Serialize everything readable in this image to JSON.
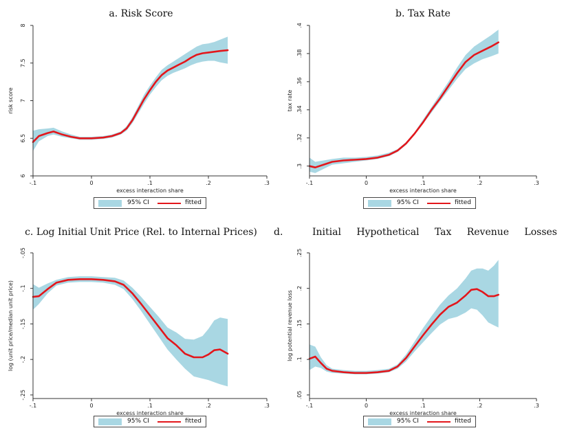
{
  "chart_data": [
    {
      "id": "a",
      "type": "line",
      "title": "a. Risk Score",
      "xlabel": "excess interaction share",
      "ylabel": "risk score",
      "xlim": [
        -0.1,
        0.3
      ],
      "ylim": [
        6,
        8
      ],
      "xticks": [
        -0.1,
        0,
        0.1,
        0.2,
        0.3
      ],
      "xtick_labels": [
        "-.1",
        "0",
        ".1",
        ".2",
        ".3"
      ],
      "yticks": [
        6,
        6.5,
        7,
        7.5,
        8
      ],
      "ytick_labels": [
        "6",
        "6.5",
        "7",
        "7.5",
        "8"
      ],
      "x": [
        -0.1,
        -0.09,
        -0.075,
        -0.065,
        -0.05,
        -0.035,
        -0.02,
        0,
        0.02,
        0.035,
        0.05,
        0.06,
        0.07,
        0.08,
        0.09,
        0.1,
        0.11,
        0.12,
        0.13,
        0.14,
        0.15,
        0.16,
        0.17,
        0.18,
        0.19,
        0.2,
        0.21,
        0.22,
        0.233
      ],
      "fitted": [
        6.45,
        6.53,
        6.57,
        6.59,
        6.55,
        6.52,
        6.5,
        6.5,
        6.51,
        6.53,
        6.57,
        6.63,
        6.74,
        6.88,
        7.02,
        7.14,
        7.25,
        7.34,
        7.4,
        7.44,
        7.48,
        7.52,
        7.57,
        7.61,
        7.63,
        7.64,
        7.65,
        7.66,
        7.67
      ],
      "ci_lower": [
        6.33,
        6.46,
        6.53,
        6.55,
        6.52,
        6.5,
        6.48,
        6.48,
        6.49,
        6.51,
        6.55,
        6.6,
        6.7,
        6.83,
        6.96,
        7.08,
        7.18,
        7.27,
        7.33,
        7.37,
        7.4,
        7.43,
        7.47,
        7.5,
        7.52,
        7.53,
        7.53,
        7.51,
        7.49
      ],
      "ci_upper": [
        6.6,
        6.62,
        6.63,
        6.64,
        6.59,
        6.55,
        6.52,
        6.52,
        6.53,
        6.55,
        6.59,
        6.66,
        6.78,
        6.93,
        7.08,
        7.2,
        7.31,
        7.41,
        7.47,
        7.52,
        7.57,
        7.62,
        7.67,
        7.72,
        7.75,
        7.76,
        7.78,
        7.81,
        7.85
      ],
      "legend": [
        "95% CI",
        "fitted"
      ]
    },
    {
      "id": "b",
      "type": "line",
      "title": "b. Tax Rate",
      "xlabel": "excess interaction share",
      "ylabel": "tax rate",
      "xlim": [
        -0.1,
        0.3
      ],
      "ylim": [
        0.293,
        0.4
      ],
      "xticks": [
        -0.1,
        0,
        0.1,
        0.2,
        0.3
      ],
      "xtick_labels": [
        "-.1",
        "0",
        ".1",
        ".2",
        ".3"
      ],
      "yticks": [
        0.3,
        0.32,
        0.34,
        0.36,
        0.38,
        0.4
      ],
      "ytick_labels": [
        ".3",
        ".32",
        ".34",
        ".36",
        ".38",
        ".4"
      ],
      "x": [
        -0.1,
        -0.09,
        -0.075,
        -0.06,
        -0.04,
        -0.02,
        0,
        0.02,
        0.04,
        0.055,
        0.07,
        0.085,
        0.1,
        0.115,
        0.13,
        0.145,
        0.16,
        0.175,
        0.19,
        0.205,
        0.22,
        0.233
      ],
      "fitted": [
        0.3,
        0.299,
        0.301,
        0.303,
        0.304,
        0.3045,
        0.305,
        0.306,
        0.308,
        0.311,
        0.316,
        0.323,
        0.331,
        0.34,
        0.348,
        0.357,
        0.366,
        0.374,
        0.379,
        0.382,
        0.385,
        0.388
      ],
      "ci_lower": [
        0.296,
        0.295,
        0.298,
        0.301,
        0.302,
        0.303,
        0.304,
        0.305,
        0.307,
        0.31,
        0.315,
        0.322,
        0.33,
        0.338,
        0.346,
        0.354,
        0.362,
        0.369,
        0.373,
        0.376,
        0.378,
        0.38
      ],
      "ci_upper": [
        0.306,
        0.303,
        0.304,
        0.305,
        0.306,
        0.306,
        0.3065,
        0.3075,
        0.3095,
        0.312,
        0.317,
        0.324,
        0.333,
        0.342,
        0.351,
        0.36,
        0.37,
        0.379,
        0.385,
        0.389,
        0.393,
        0.397
      ],
      "legend": [
        "95% CI",
        "fitted"
      ]
    },
    {
      "id": "c",
      "type": "line",
      "title": "c. Log Initial Unit Price (Rel. to Internal Prices)",
      "xlabel": "excess interaction share",
      "ylabel": "log (unit price/median unit price)",
      "xlim": [
        -0.1,
        0.3
      ],
      "ylim": [
        -0.255,
        -0.05
      ],
      "xticks": [
        -0.1,
        0,
        0.1,
        0.2,
        0.3
      ],
      "xtick_labels": [
        "-.1",
        "0",
        ".1",
        ".2",
        ".3"
      ],
      "yticks": [
        -0.25,
        -0.2,
        -0.15,
        -0.1,
        -0.05
      ],
      "ytick_labels": [
        "-.25",
        "-.2",
        "-.15",
        "-.1",
        "-.05"
      ],
      "x": [
        -0.1,
        -0.09,
        -0.075,
        -0.06,
        -0.04,
        -0.02,
        0,
        0.02,
        0.04,
        0.055,
        0.07,
        0.085,
        0.1,
        0.115,
        0.13,
        0.145,
        0.16,
        0.175,
        0.19,
        0.2,
        0.21,
        0.22,
        0.233
      ],
      "fitted": [
        -0.112,
        -0.111,
        -0.101,
        -0.092,
        -0.088,
        -0.087,
        -0.087,
        -0.088,
        -0.09,
        -0.095,
        -0.107,
        -0.122,
        -0.138,
        -0.154,
        -0.17,
        -0.18,
        -0.192,
        -0.197,
        -0.197,
        -0.193,
        -0.187,
        -0.186,
        -0.192
      ],
      "ci_lower": [
        -0.13,
        -0.122,
        -0.107,
        -0.096,
        -0.092,
        -0.091,
        -0.091,
        -0.092,
        -0.095,
        -0.101,
        -0.115,
        -0.132,
        -0.15,
        -0.168,
        -0.186,
        -0.2,
        -0.213,
        -0.224,
        -0.227,
        -0.229,
        -0.232,
        -0.235,
        -0.238
      ],
      "ci_upper": [
        -0.094,
        -0.099,
        -0.093,
        -0.088,
        -0.084,
        -0.083,
        -0.083,
        -0.084,
        -0.085,
        -0.089,
        -0.099,
        -0.112,
        -0.126,
        -0.14,
        -0.155,
        -0.162,
        -0.171,
        -0.172,
        -0.167,
        -0.157,
        -0.145,
        -0.141,
        -0.143
      ],
      "legend": [
        "95% CI",
        "fitted"
      ]
    },
    {
      "id": "d",
      "type": "line",
      "title_label": "d.",
      "title": "Initial Hypothetical Tax Revenue Losses",
      "xlabel": "excess interaction share",
      "ylabel": "log potential revenue loss",
      "xlim": [
        -0.1,
        0.3
      ],
      "ylim": [
        0.045,
        0.25
      ],
      "xticks": [
        -0.1,
        0,
        0.1,
        0.2,
        0.3
      ],
      "xtick_labels": [
        "-.1",
        "0",
        ".1",
        ".2",
        ".3"
      ],
      "yticks": [
        0.05,
        0.1,
        0.15,
        0.2,
        0.25
      ],
      "ytick_labels": [
        ".05",
        ".1",
        ".15",
        ".2",
        ".25"
      ],
      "x": [
        -0.1,
        -0.09,
        -0.08,
        -0.07,
        -0.06,
        -0.04,
        -0.02,
        0,
        0.02,
        0.04,
        0.055,
        0.07,
        0.085,
        0.1,
        0.115,
        0.13,
        0.145,
        0.16,
        0.175,
        0.185,
        0.195,
        0.205,
        0.215,
        0.225,
        0.233
      ],
      "fitted": [
        0.101,
        0.104,
        0.095,
        0.087,
        0.084,
        0.082,
        0.081,
        0.081,
        0.082,
        0.084,
        0.09,
        0.102,
        0.118,
        0.134,
        0.149,
        0.163,
        0.174,
        0.18,
        0.19,
        0.198,
        0.199,
        0.195,
        0.189,
        0.189,
        0.191
      ],
      "ci_lower": [
        0.085,
        0.09,
        0.088,
        0.083,
        0.081,
        0.08,
        0.079,
        0.079,
        0.08,
        0.082,
        0.087,
        0.097,
        0.111,
        0.124,
        0.137,
        0.149,
        0.157,
        0.16,
        0.166,
        0.172,
        0.17,
        0.162,
        0.152,
        0.148,
        0.145
      ],
      "ci_upper": [
        0.121,
        0.118,
        0.103,
        0.092,
        0.087,
        0.085,
        0.084,
        0.084,
        0.085,
        0.087,
        0.093,
        0.107,
        0.125,
        0.144,
        0.161,
        0.177,
        0.19,
        0.2,
        0.214,
        0.225,
        0.228,
        0.228,
        0.225,
        0.232,
        0.24
      ],
      "legend": [
        "95% CI",
        "fitted"
      ]
    }
  ],
  "colors": {
    "ci": "#a9d7e3",
    "fitted": "#e3161b",
    "axis": "#333333"
  }
}
